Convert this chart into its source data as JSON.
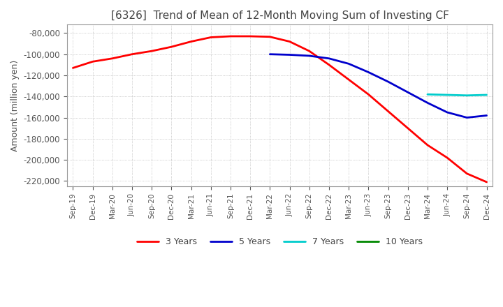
{
  "title": "[6326]  Trend of Mean of 12-Month Moving Sum of Investing CF",
  "ylabel": "Amount (million yen)",
  "ylim": [
    -225000,
    -72000
  ],
  "yticks": [
    -80000,
    -100000,
    -120000,
    -140000,
    -160000,
    -180000,
    -200000,
    -220000
  ],
  "background_color": "#ffffff",
  "plot_bg_color": "#ffffff",
  "grid_color": "#aaaaaa",
  "legend": [
    "3 Years",
    "5 Years",
    "7 Years",
    "10 Years"
  ],
  "line_colors": [
    "#ff0000",
    "#0000cc",
    "#00cccc",
    "#008800"
  ],
  "x_labels": [
    "Sep-19",
    "Dec-19",
    "Mar-20",
    "Jun-20",
    "Sep-20",
    "Dec-20",
    "Mar-21",
    "Jun-21",
    "Sep-21",
    "Dec-21",
    "Mar-22",
    "Jun-22",
    "Sep-22",
    "Dec-22",
    "Mar-23",
    "Jun-23",
    "Sep-23",
    "Dec-23",
    "Mar-24",
    "Jun-24",
    "Sep-24",
    "Dec-24"
  ],
  "series_3yr": [
    -113000,
    -107000,
    -104000,
    -100000,
    -97000,
    -93000,
    -88000,
    -84000,
    -83000,
    -83000,
    -83500,
    -88000,
    -97000,
    -110000,
    -124000,
    -138000,
    -154000,
    -170000,
    -186000,
    -198000,
    -213000,
    -221000
  ],
  "series_5yr": [
    null,
    null,
    null,
    null,
    null,
    null,
    null,
    null,
    null,
    null,
    -100000,
    -100500,
    -101500,
    -104000,
    -109000,
    -117000,
    -126000,
    -136000,
    -146000,
    -155000,
    -160000,
    -158000
  ],
  "series_7yr": [
    null,
    null,
    null,
    null,
    null,
    null,
    null,
    null,
    null,
    null,
    null,
    null,
    null,
    null,
    null,
    null,
    null,
    null,
    -138000,
    -138500,
    -139000,
    -138500
  ],
  "series_10yr": [
    null,
    null,
    null,
    null,
    null,
    null,
    null,
    null,
    null,
    null,
    null,
    null,
    null,
    null,
    null,
    null,
    null,
    null,
    null,
    null,
    null,
    null
  ]
}
